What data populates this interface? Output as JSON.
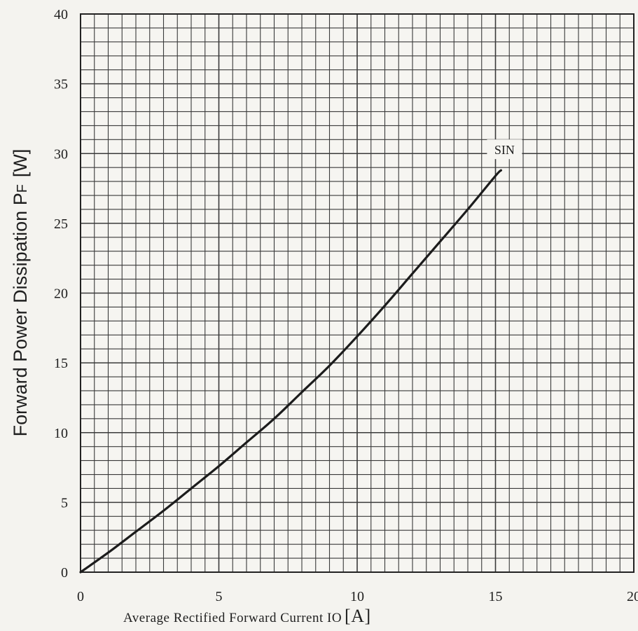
{
  "chart_data": {
    "type": "line",
    "title": "",
    "xlabel": "Average Rectified Forward Current IO",
    "xlabel_unit": "[A]",
    "ylabel": "Forward Power Dissipation  P",
    "ylabel_subscript": "F",
    "ylabel_unit": "[W]",
    "xlim": [
      0,
      20
    ],
    "ylim": [
      0,
      40
    ],
    "x_ticks": [
      "0",
      "5",
      "10",
      "15",
      "20"
    ],
    "y_ticks": [
      "0",
      "5",
      "10",
      "15",
      "20",
      "25",
      "30",
      "35",
      "40"
    ],
    "grid": true,
    "series": [
      {
        "name": "SIN",
        "x": [
          0,
          1,
          2,
          3,
          4,
          5,
          6,
          7,
          8,
          9,
          10,
          11,
          12,
          13,
          14,
          15,
          15.2
        ],
        "y": [
          0,
          1.4,
          2.9,
          4.4,
          6.0,
          7.6,
          9.3,
          11.0,
          12.9,
          14.8,
          16.9,
          19.1,
          21.4,
          23.7,
          26.0,
          28.4,
          28.8
        ]
      }
    ],
    "colors": {
      "background": "#f4f3ef",
      "grid": "#3a3a3a",
      "line": "#1c1c1c",
      "text": "#1f1f1f"
    }
  }
}
